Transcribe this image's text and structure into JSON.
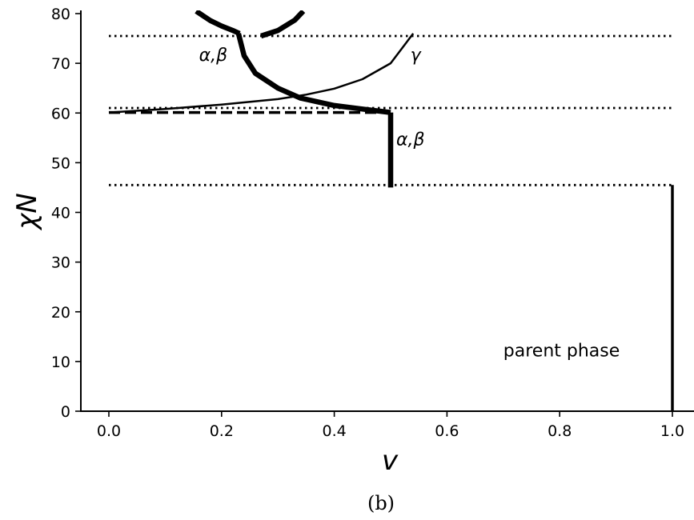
{
  "chart_data": {
    "type": "line",
    "xlabel": "v",
    "ylabel": "χN",
    "xlim": [
      -0.05,
      1.04
    ],
    "ylim": [
      0,
      81
    ],
    "xticks": [
      0.0,
      0.2,
      0.4,
      0.6,
      0.8,
      1.0
    ],
    "xtick_labels": [
      "0.0",
      "0.2",
      "0.4",
      "0.6",
      "0.8",
      "1.0"
    ],
    "yticks": [
      0,
      10,
      20,
      30,
      40,
      50,
      60,
      70,
      80
    ],
    "ytick_labels": [
      "0",
      "10",
      "20",
      "30",
      "40",
      "50",
      "60",
      "70",
      "80"
    ],
    "grid": false,
    "caption": "(b)",
    "annotations": [
      {
        "text": "α,β",
        "x": 0.16,
        "y": 70.5
      },
      {
        "text": "γ",
        "x": 0.535,
        "y": 70.5
      },
      {
        "text": "α,β",
        "x": 0.51,
        "y": 53.5
      },
      {
        "text": "parent phase",
        "x": 0.7,
        "y": 11
      }
    ],
    "series": [
      {
        "style": "dotted",
        "width": "thin",
        "x": [
          0.0,
          1.0
        ],
        "y": [
          75.5,
          75.5
        ]
      },
      {
        "style": "dotted",
        "width": "thin",
        "x": [
          0.0,
          1.0
        ],
        "y": [
          61.0,
          61.0
        ]
      },
      {
        "style": "dotted",
        "width": "thin",
        "x": [
          0.0,
          1.0
        ],
        "y": [
          45.5,
          45.5
        ]
      },
      {
        "style": "dashed",
        "width": "medium",
        "x": [
          0.0,
          0.5
        ],
        "y": [
          60.1,
          60.1
        ]
      },
      {
        "style": "solid",
        "width": "thin",
        "x": [
          0.0,
          0.1,
          0.2,
          0.3,
          0.35,
          0.4,
          0.45,
          0.5,
          0.54
        ],
        "y": [
          60.1,
          60.8,
          61.7,
          62.8,
          63.7,
          64.9,
          66.8,
          70.0,
          76.0
        ]
      },
      {
        "style": "solid",
        "width": "thick",
        "x": [
          0.23,
          0.24,
          0.26,
          0.3,
          0.34,
          0.4,
          0.45,
          0.5
        ],
        "y": [
          76.0,
          71.5,
          68.0,
          65.0,
          63.0,
          61.5,
          60.8,
          60.1
        ]
      },
      {
        "style": "solid",
        "width": "thick",
        "x": [
          0.5,
          0.5
        ],
        "y": [
          60.1,
          45.0
        ]
      },
      {
        "style": "solid",
        "width": "thick",
        "x": [
          0.155,
          0.18,
          0.2,
          0.22,
          0.232
        ],
        "y": [
          80.5,
          78.6,
          77.5,
          76.6,
          76.0
        ]
      },
      {
        "style": "solid",
        "width": "thick",
        "x": [
          0.27,
          0.3,
          0.33,
          0.345
        ],
        "y": [
          75.5,
          76.6,
          78.7,
          80.5
        ]
      },
      {
        "style": "solid",
        "width": "medium",
        "x": [
          1.0,
          1.0
        ],
        "y": [
          45.5,
          0
        ]
      }
    ]
  }
}
